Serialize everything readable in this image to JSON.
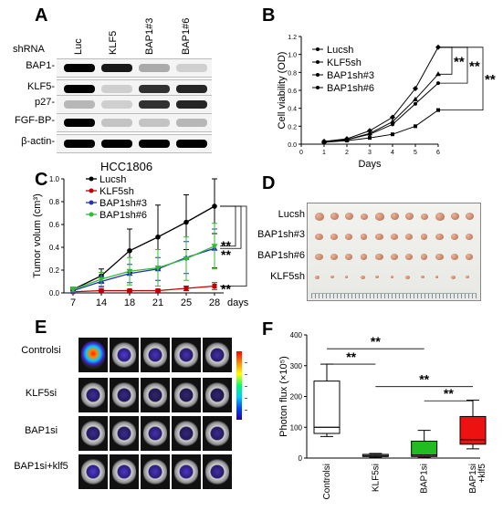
{
  "panels": {
    "A": {
      "label": "A",
      "shrna_label": "shRNA",
      "lanes": [
        "Luc",
        "KLF5",
        "BAP1#3",
        "BAP1#6"
      ],
      "rows": [
        "BAP1-",
        "KLF5-",
        "p27-",
        "FGF-BP-",
        "β-actin-"
      ],
      "cell_line": "HCC1806"
    },
    "B": {
      "label": "B"
    },
    "C": {
      "label": "C"
    },
    "D": {
      "label": "D",
      "rows": [
        "Lucsh",
        "BAP1sh#3",
        "BAP1sh#6",
        "KLF5sh"
      ]
    },
    "E": {
      "label": "E",
      "rows": [
        "Controlsi",
        "KLF5si",
        "BAP1si",
        "BAP1si+klf5"
      ]
    },
    "F": {
      "label": "F"
    }
  },
  "chart_data": [
    {
      "panel": "B",
      "type": "line",
      "xlabel": "Days",
      "ylabel": "Cell viability (OD)",
      "x": [
        0,
        1,
        2,
        3,
        4,
        5,
        6
      ],
      "xlim": [
        0,
        6
      ],
      "ylim": [
        0.0,
        1.2
      ],
      "yticks": [
        "0.0",
        "0.2",
        "0.4",
        "0.6",
        "0.8",
        "1.0",
        "1.2"
      ],
      "xticks": [
        "0",
        "1",
        "2",
        "3",
        "4",
        "5",
        "6"
      ],
      "series": [
        {
          "name": "Lucsh",
          "values": [
            null,
            0.03,
            0.06,
            0.15,
            0.3,
            0.62,
            1.08
          ]
        },
        {
          "name": "KLF5sh",
          "values": [
            null,
            0.02,
            0.04,
            0.07,
            0.11,
            0.2,
            0.38
          ]
        },
        {
          "name": "BAP1sh#3",
          "values": [
            null,
            0.03,
            0.05,
            0.12,
            0.25,
            0.5,
            0.78
          ]
        },
        {
          "name": "BAP1sh#6",
          "values": [
            null,
            0.03,
            0.05,
            0.11,
            0.22,
            0.45,
            0.68
          ]
        }
      ],
      "annotations": [
        "**",
        "**",
        "**"
      ]
    },
    {
      "panel": "C",
      "type": "line",
      "xlabel": "days",
      "ylabel": "Tumor volum (cm³)",
      "categories": [
        "7",
        "14",
        "18",
        "21",
        "25",
        "28"
      ],
      "ylim": [
        0.0,
        1.0
      ],
      "yticks": [
        "0.0",
        "0.2",
        "0.4",
        "0.6",
        "0.8",
        "1.0"
      ],
      "series": [
        {
          "name": "Lucsh",
          "color": "#000000",
          "values": [
            0.03,
            0.15,
            0.37,
            0.49,
            0.62,
            0.76
          ],
          "err": [
            0.02,
            0.06,
            0.19,
            0.28,
            0.24,
            0.24
          ]
        },
        {
          "name": "KLF5sh",
          "color": "#c00000",
          "values": [
            0.01,
            0.02,
            0.02,
            0.02,
            0.04,
            0.06
          ],
          "err": [
            0.01,
            0.01,
            0.01,
            0.01,
            0.02,
            0.03
          ]
        },
        {
          "name": "BAP1sh#3",
          "color": "#2233bb",
          "values": [
            0.02,
            0.1,
            0.17,
            0.21,
            0.31,
            0.39
          ],
          "err": [
            0.02,
            0.05,
            0.08,
            0.1,
            0.14,
            0.17
          ]
        },
        {
          "name": "BAP1sh#6",
          "color": "#33bb33",
          "values": [
            0.03,
            0.12,
            0.19,
            0.22,
            0.3,
            0.41
          ],
          "err": [
            0.02,
            0.06,
            0.12,
            0.16,
            0.19,
            0.2
          ]
        }
      ],
      "annotations": [
        "**",
        "**",
        "**"
      ]
    },
    {
      "panel": "F",
      "type": "box",
      "ylabel": "Photon flux (×10⁵)",
      "categories": [
        "Controlsi",
        "KLF5si",
        "BAP1si",
        "BAP1si\n+klf5"
      ],
      "ylim": [
        0,
        400
      ],
      "yticks": [
        "0",
        "100",
        "200",
        "300",
        "400"
      ],
      "boxes": [
        {
          "min": 70,
          "q1": 80,
          "median": 100,
          "q3": 250,
          "max": 305,
          "color": "#ffffff"
        },
        {
          "min": 2,
          "q1": 5,
          "median": 8,
          "q3": 12,
          "max": 15,
          "color": "#ffffff"
        },
        {
          "min": 2,
          "q1": 5,
          "median": 10,
          "q3": 55,
          "max": 90,
          "color": "#22bb22"
        },
        {
          "min": 30,
          "q1": 45,
          "median": 60,
          "q3": 135,
          "max": 188,
          "color": "#ee1111"
        }
      ],
      "annotations": [
        "**",
        "**",
        "**",
        "**"
      ]
    }
  ],
  "colorbar": {
    "colors": [
      "#2200aa",
      "#0044ff",
      "#00ccff",
      "#00ff66",
      "#ffff00",
      "#ff8800",
      "#ff0000"
    ]
  }
}
